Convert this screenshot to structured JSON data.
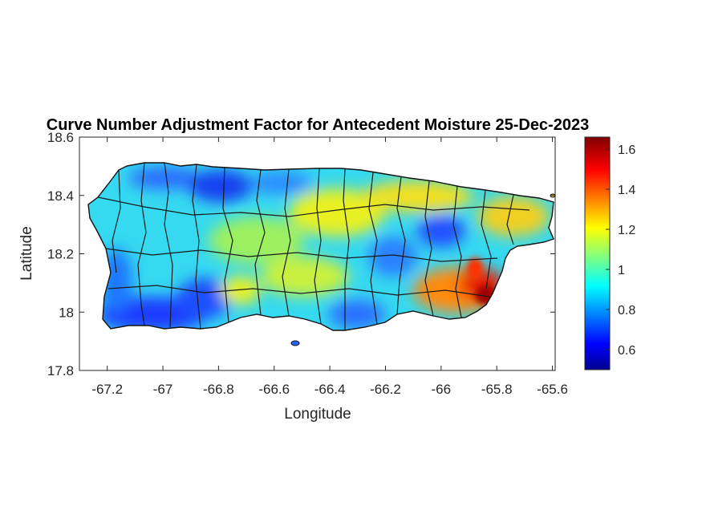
{
  "title": "Curve Number Adjustment Factor for Antecedent Moisture 25-Dec-2023",
  "x_axis": {
    "label": "Longitude",
    "range": [
      -67.3,
      -65.59
    ],
    "ticks": [
      -67.2,
      -67,
      -66.8,
      -66.6,
      -66.4,
      -66.2,
      -66,
      -65.8,
      -65.6
    ],
    "tick_labels": [
      "-67.2",
      "-67",
      "-66.8",
      "-66.6",
      "-66.4",
      "-66.2",
      "-66",
      "-65.8",
      "-65.6"
    ]
  },
  "y_axis": {
    "label": "Latitude",
    "range": [
      17.8,
      18.6
    ],
    "ticks": [
      17.8,
      18,
      18.2,
      18.4,
      18.6
    ],
    "tick_labels": [
      "17.8",
      "18",
      "18.2",
      "18.4",
      "18.6"
    ]
  },
  "colorbar": {
    "colormap": "jet",
    "range": [
      0.5,
      1.66
    ],
    "ticks": [
      0.6,
      0.8,
      1,
      1.2,
      1.4,
      1.6
    ],
    "tick_labels": [
      "0.6",
      "0.8",
      "1",
      "1.2",
      "1.4",
      "1.6"
    ]
  },
  "map": {
    "region": "Puerto Rico",
    "municipal_boundaries": true,
    "overall_range": "values mostly 0.7–1.3, high (1.4–1.66) in the southeast near -65.85 lon, 18.05 lat; low (~0.6) patches in the southwest and north-central"
  }
}
